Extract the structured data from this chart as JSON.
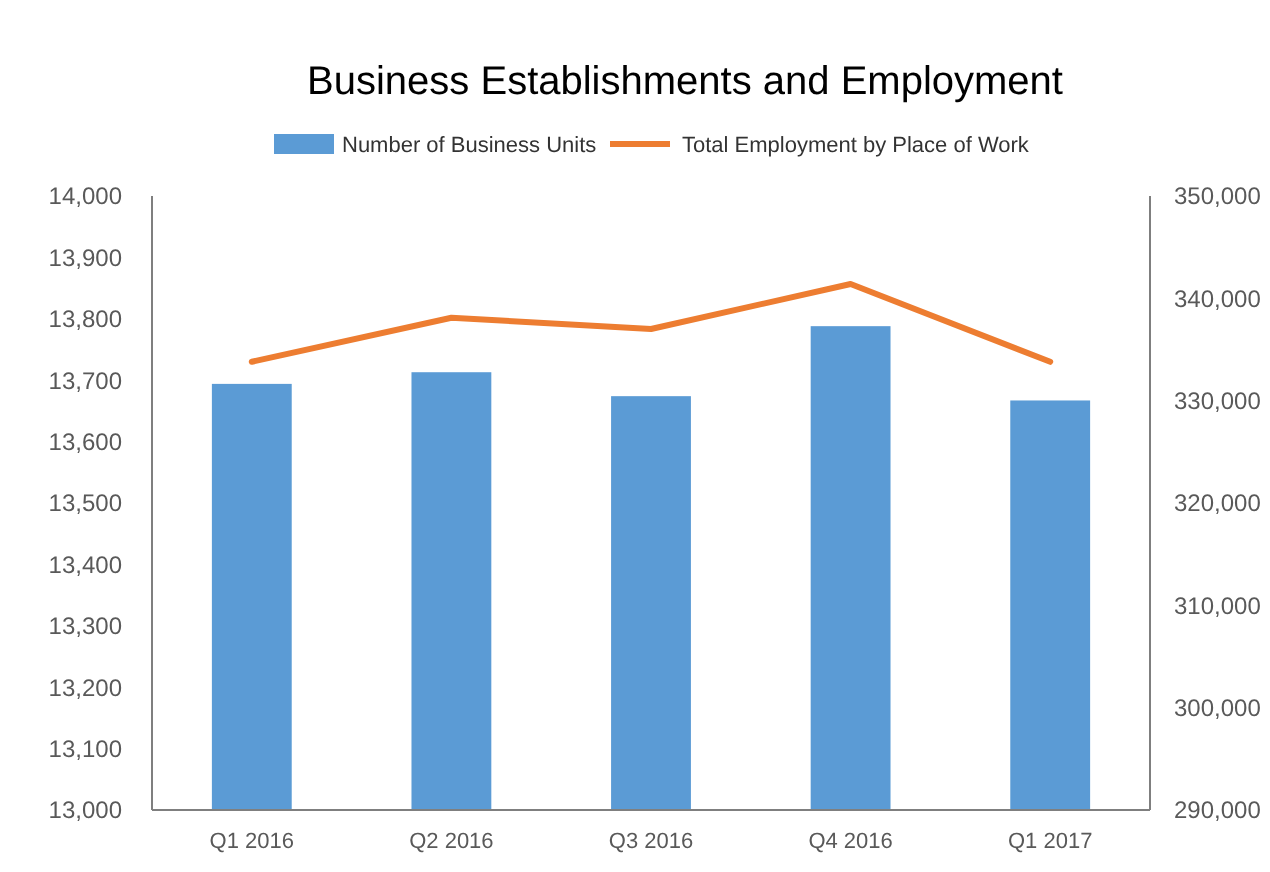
{
  "chart_data": {
    "type": "bar",
    "title": "Business Establishments and Employment",
    "categories": [
      "Q1 2016",
      "Q2 2016",
      "Q3 2016",
      "Q4 2016",
      "Q1 2017"
    ],
    "series": [
      {
        "name": "Number of Business Units",
        "color": "#5b9bd5",
        "values": [
          13694,
          13713,
          13674,
          13788,
          13667
        ]
      },
      {
        "name": "Total Employment by Place of Work",
        "color": "#ed7d31",
        "type": "line",
        "axis": "y2",
        "values": [
          333800,
          338100,
          337000,
          341400,
          333800
        ]
      }
    ],
    "ylim": [
      13000,
      14000
    ],
    "yticks": [
      {
        "value": 13000,
        "label": "13,000"
      },
      {
        "value": 13100,
        "label": "13,100"
      },
      {
        "value": 13200,
        "label": "13,200"
      },
      {
        "value": 13300,
        "label": "13,300"
      },
      {
        "value": 13400,
        "label": "13,400"
      },
      {
        "value": 13500,
        "label": "13,500"
      },
      {
        "value": 13600,
        "label": "13,600"
      },
      {
        "value": 13700,
        "label": "13,700"
      },
      {
        "value": 13800,
        "label": "13,800"
      },
      {
        "value": 13900,
        "label": "13,900"
      },
      {
        "value": 14000,
        "label": "14,000"
      }
    ],
    "y2lim": [
      290000,
      350000
    ],
    "y2ticks": [
      {
        "value": 290000,
        "label": "290,000"
      },
      {
        "value": 300000,
        "label": "300,000"
      },
      {
        "value": 310000,
        "label": "310,000"
      },
      {
        "value": 320000,
        "label": "320,000"
      },
      {
        "value": 330000,
        "label": "330,000"
      },
      {
        "value": 340000,
        "label": "340,000"
      },
      {
        "value": 350000,
        "label": "350,000"
      }
    ],
    "legend": "top",
    "grid": false
  }
}
